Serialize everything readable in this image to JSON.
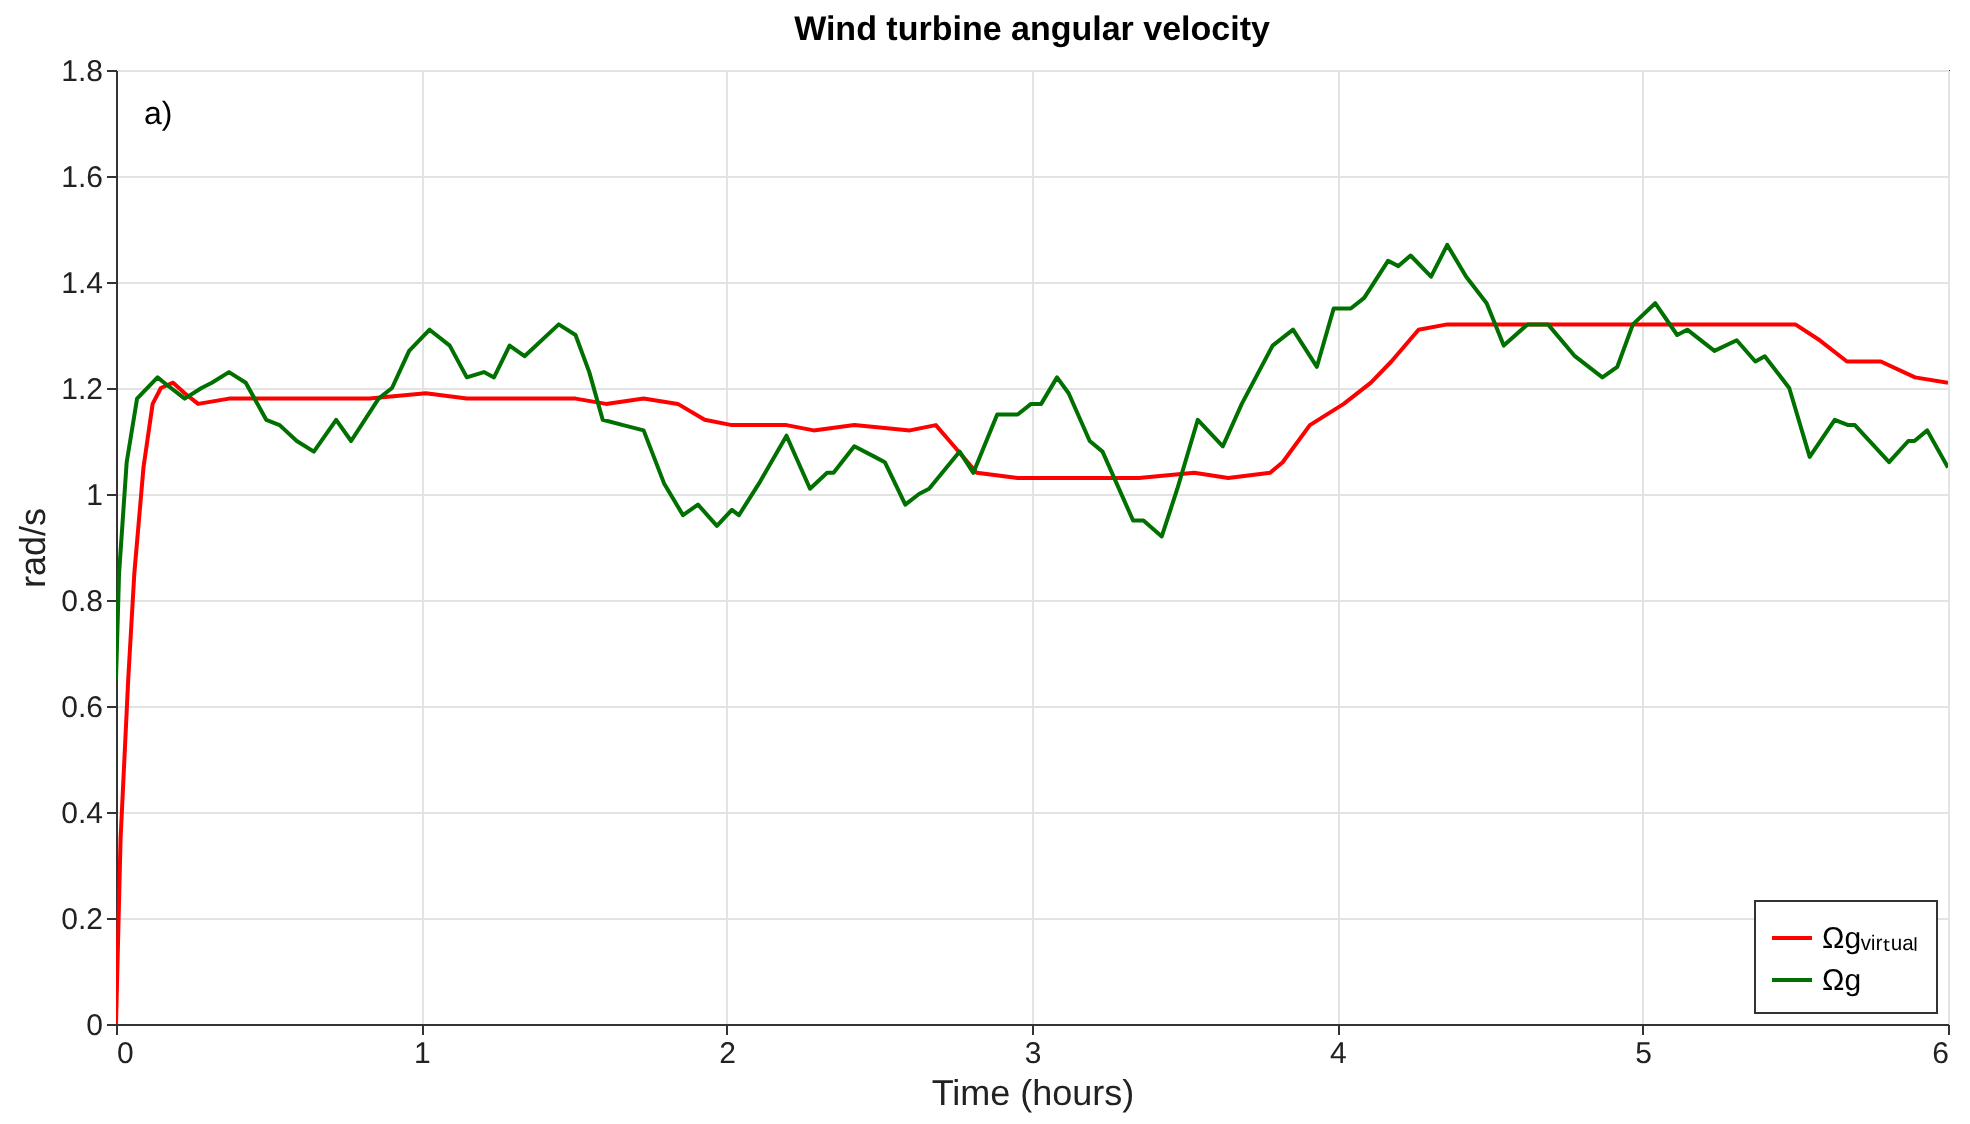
{
  "chart_data": {
    "type": "line",
    "title": "Wind turbine angular velocity",
    "xlabel": "Time (hours)",
    "ylabel": "rad/s",
    "annotations": [
      "a)"
    ],
    "xlim": [
      0,
      6
    ],
    "ylim": [
      0,
      1.8
    ],
    "xticks": [
      0,
      1,
      2,
      3,
      4,
      5,
      6
    ],
    "yticks": [
      0,
      0.2,
      0.4,
      0.6,
      0.8,
      1,
      1.2,
      1.4,
      1.6,
      1.8
    ],
    "grid": true,
    "legend": "bottom right",
    "series": [
      {
        "name": "Ωgᵥᵢᵣₜᵤₐₗ",
        "color": "#ff0000",
        "x": [
          0,
          0.015,
          0.04,
          0.06,
          0.09,
          0.12,
          0.147,
          0.187,
          0.225,
          0.269,
          0.37,
          0.5,
          0.726,
          0.83,
          1.015,
          1.149,
          1.283,
          1.37,
          1.505,
          1.605,
          1.728,
          1.84,
          1.928,
          2.017,
          2.196,
          2.285,
          2.418,
          2.6,
          2.685,
          2.73,
          2.819,
          2.953,
          3.13,
          3.26,
          3.35,
          3.531,
          3.643,
          3.78,
          3.821,
          3.91,
          4.021,
          4.11,
          4.177,
          4.266,
          4.36,
          4.54,
          4.76,
          5.023,
          5.2,
          5.42,
          5.5,
          5.58,
          5.669,
          5.78,
          5.892,
          6.0
        ],
        "values": [
          0,
          0.35,
          0.65,
          0.85,
          1.05,
          1.17,
          1.2,
          1.21,
          1.19,
          1.17,
          1.18,
          1.18,
          1.18,
          1.18,
          1.19,
          1.18,
          1.18,
          1.18,
          1.18,
          1.17,
          1.18,
          1.17,
          1.14,
          1.13,
          1.13,
          1.12,
          1.13,
          1.12,
          1.13,
          1.1,
          1.04,
          1.03,
          1.03,
          1.03,
          1.03,
          1.04,
          1.03,
          1.04,
          1.06,
          1.13,
          1.17,
          1.21,
          1.25,
          1.31,
          1.32,
          1.32,
          1.32,
          1.32,
          1.32,
          1.32,
          1.32,
          1.29,
          1.25,
          1.25,
          1.22,
          1.21
        ]
      },
      {
        "name": "Ωg",
        "color": "#007000",
        "x": [
          0,
          0.01,
          0.035,
          0.069,
          0.136,
          0.158,
          0.225,
          0.28,
          0.314,
          0.37,
          0.425,
          0.492,
          0.536,
          0.592,
          0.648,
          0.721,
          0.77,
          0.86,
          0.904,
          0.96,
          1.027,
          1.093,
          1.149,
          1.205,
          1.238,
          1.289,
          1.338,
          1.45,
          1.505,
          1.55,
          1.594,
          1.661,
          1.728,
          1.795,
          1.857,
          1.906,
          1.968,
          2.017,
          2.04,
          2.106,
          2.196,
          2.273,
          2.329,
          2.35,
          2.418,
          2.485,
          2.518,
          2.585,
          2.63,
          2.663,
          2.763,
          2.808,
          2.886,
          2.953,
          2.997,
          3.03,
          3.082,
          3.12,
          3.189,
          3.231,
          3.331,
          3.365,
          3.425,
          3.476,
          3.543,
          3.625,
          3.687,
          3.788,
          3.855,
          3.933,
          3.988,
          4.044,
          4.088,
          4.166,
          4.2,
          4.24,
          4.307,
          4.36,
          4.422,
          4.489,
          4.545,
          4.623,
          4.69,
          4.778,
          4.868,
          4.917,
          4.968,
          5.041,
          5.113,
          5.146,
          5.235,
          5.308,
          5.369,
          5.4,
          5.48,
          5.547,
          5.629,
          5.673,
          5.695,
          5.807,
          5.87,
          5.89,
          5.932,
          6.0
        ],
        "values": [
          0.65,
          0.85,
          1.06,
          1.18,
          1.22,
          1.21,
          1.18,
          1.2,
          1.21,
          1.23,
          1.21,
          1.14,
          1.13,
          1.1,
          1.08,
          1.14,
          1.1,
          1.18,
          1.2,
          1.27,
          1.31,
          1.28,
          1.22,
          1.23,
          1.22,
          1.28,
          1.26,
          1.32,
          1.3,
          1.23,
          1.14,
          1.13,
          1.12,
          1.02,
          0.96,
          0.98,
          0.94,
          0.97,
          0.96,
          1.02,
          1.11,
          1.01,
          1.04,
          1.04,
          1.09,
          1.07,
          1.06,
          0.98,
          1.0,
          1.01,
          1.08,
          1.04,
          1.15,
          1.15,
          1.17,
          1.17,
          1.22,
          1.19,
          1.1,
          1.08,
          0.95,
          0.95,
          0.92,
          1.01,
          1.14,
          1.09,
          1.17,
          1.28,
          1.31,
          1.24,
          1.35,
          1.35,
          1.37,
          1.44,
          1.43,
          1.45,
          1.41,
          1.47,
          1.41,
          1.36,
          1.28,
          1.32,
          1.32,
          1.26,
          1.22,
          1.24,
          1.32,
          1.36,
          1.3,
          1.31,
          1.27,
          1.29,
          1.25,
          1.26,
          1.2,
          1.07,
          1.14,
          1.13,
          1.13,
          1.06,
          1.1,
          1.1,
          1.12,
          1.05
        ]
      }
    ]
  }
}
